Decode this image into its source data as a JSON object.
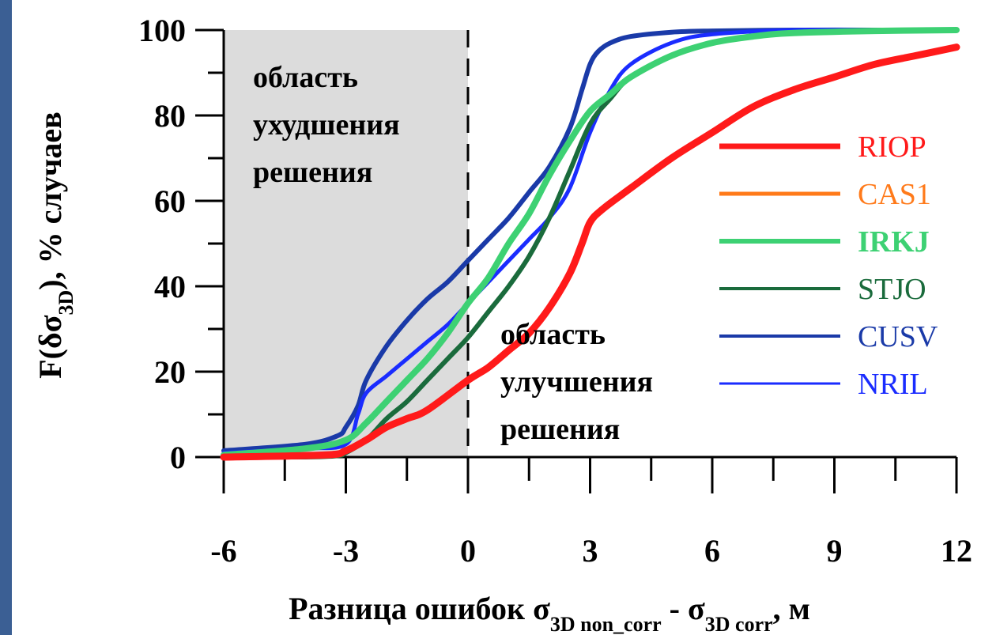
{
  "chart_data": {
    "type": "line",
    "ylabel": "F(δσ3D), % случаев",
    "ylabel_parts": {
      "pre": "F(δσ",
      "sub": "3D",
      "post": "), % случаев"
    },
    "xlabel": "Разница ошибок σ3D non_corr - σ3D corr, м",
    "xlabel_parts": {
      "pre": "Разница ошибок σ",
      "sub1": "3D non_corr",
      "mid": " - σ",
      "sub2": "3D corr",
      "post": ", м"
    },
    "xlim": [
      -6,
      12
    ],
    "ylim": [
      0,
      100
    ],
    "x_ticks": [
      "-6",
      "-3",
      "0",
      "3",
      "6",
      "9",
      "12"
    ],
    "y_ticks": [
      "0",
      "20",
      "40",
      "60",
      "80",
      "100"
    ],
    "annotations": {
      "degradation_region": [
        "область",
        "ухудшения",
        "решения"
      ],
      "improvement_region": [
        "область",
        "улучшения",
        "решения"
      ]
    },
    "shaded_region": [
      -6,
      0
    ],
    "series": [
      {
        "name": "RIOP",
        "color": "#ff1a1a",
        "x": [
          -6,
          -3.5,
          -3,
          -2.5,
          -2,
          -1.5,
          -1,
          0,
          0.5,
          1,
          1.5,
          2,
          2.5,
          2.8,
          3,
          3.3,
          4,
          5,
          6,
          7,
          8,
          9,
          10,
          11,
          12
        ],
        "y": [
          0,
          0.5,
          1.5,
          4,
          7,
          9,
          11,
          18,
          21,
          25,
          29,
          35,
          43,
          50,
          55,
          58,
          63,
          70,
          76,
          82,
          86,
          89,
          92,
          94,
          96
        ]
      },
      {
        "name": "CAS1",
        "color": "#ff7a1a",
        "x": [
          -6,
          -3.5,
          -3,
          -2.5,
          -2,
          -1.5,
          -1,
          0,
          0.5,
          1,
          1.5,
          2,
          2.5,
          2.8,
          3,
          3.3,
          4,
          5,
          6,
          7,
          8,
          9,
          10,
          11,
          12
        ],
        "y": [
          0,
          0.5,
          1.5,
          4,
          7,
          9,
          11,
          18,
          21,
          25,
          29,
          35,
          43,
          50,
          55,
          58,
          63,
          70,
          76,
          82,
          86,
          89,
          92,
          94,
          96
        ]
      },
      {
        "name": "IRKJ",
        "color": "#3dd173",
        "x": [
          -6,
          -4,
          -3,
          -2.5,
          -2,
          -1.5,
          -1,
          -0.5,
          0,
          0.5,
          1,
          1.5,
          2,
          2.5,
          3,
          3.5,
          4,
          5,
          6,
          7,
          8,
          10,
          12
        ],
        "y": [
          0.5,
          2,
          4,
          8,
          13,
          18,
          23,
          29,
          36,
          42,
          50,
          57,
          66,
          74,
          81,
          85,
          89,
          94,
          97,
          98.5,
          99.3,
          99.8,
          100
        ]
      },
      {
        "name": "STJO",
        "color": "#1a6b3c",
        "x": [
          -6,
          -4,
          -3.2,
          -3,
          -2.5,
          -2,
          -1.5,
          -1,
          -0.5,
          0,
          0.5,
          1,
          1.5,
          2,
          2.5,
          3,
          3.5,
          4,
          5,
          6,
          7,
          8,
          10,
          12
        ],
        "y": [
          0,
          0,
          0.3,
          1,
          4,
          9,
          13,
          18,
          23,
          28,
          34,
          40,
          47,
          56,
          67,
          78,
          84,
          89,
          94,
          97,
          98.5,
          99.3,
          99.8,
          100
        ]
      },
      {
        "name": "CUSV",
        "color": "#1a3aa8",
        "x": [
          -6,
          -4,
          -3.2,
          -3,
          -2.7,
          -2.5,
          -2,
          -1.5,
          -1,
          -0.5,
          0,
          0.5,
          1,
          1.5,
          2,
          2.5,
          2.8,
          3,
          3.2,
          3.5,
          4,
          5,
          6,
          8,
          10,
          12
        ],
        "y": [
          1.5,
          3,
          5,
          7,
          12,
          18,
          26,
          32,
          37,
          41,
          46,
          51,
          56,
          62,
          68,
          77,
          86,
          92,
          95,
          97,
          98.5,
          99.5,
          99.8,
          100,
          100,
          100
        ]
      },
      {
        "name": "NRIL",
        "color": "#1a2cff",
        "x": [
          -6,
          -4,
          -3,
          -2.7,
          -2.5,
          -2,
          -1.5,
          -1,
          -0.5,
          0,
          0.5,
          1,
          1.5,
          2,
          2.5,
          3,
          3.5,
          4,
          5,
          6,
          8,
          10,
          12
        ],
        "y": [
          1,
          2,
          3,
          10,
          15,
          19,
          23,
          27,
          31,
          36,
          41,
          46,
          51,
          56,
          63,
          76,
          86,
          92,
          97,
          99,
          100,
          100,
          100
        ]
      }
    ],
    "legend_position": "right"
  }
}
